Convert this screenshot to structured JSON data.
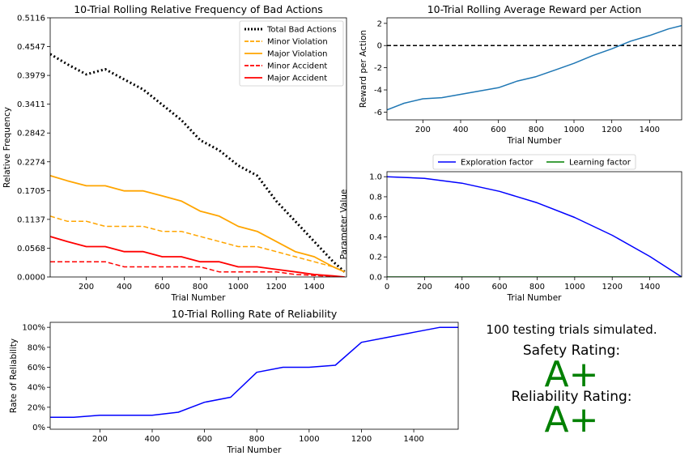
{
  "chart_data": [
    {
      "id": "bad-actions",
      "type": "line",
      "title": "10-Trial Rolling Relative Frequency of Bad Actions",
      "xlabel": "Trial Number",
      "ylabel": "Relative Frequency",
      "xlim": [
        10,
        1570
      ],
      "ylim": [
        0,
        0.5116
      ],
      "xticks": [
        200,
        400,
        600,
        800,
        1000,
        1200,
        1400
      ],
      "yticks": [
        "0.0000",
        "0.0568",
        "0.1137",
        "0.1705",
        "0.2274",
        "0.2842",
        "0.3411",
        "0.3979",
        "0.4547",
        "0.5116"
      ],
      "legend": "top-right",
      "grid": false,
      "series": [
        {
          "name": "Total Bad Actions",
          "color": "#000000",
          "style": "dotted",
          "x": [
            10,
            100,
            200,
            300,
            400,
            500,
            600,
            700,
            800,
            900,
            1000,
            1100,
            1200,
            1300,
            1400,
            1500,
            1560
          ],
          "y": [
            0.44,
            0.42,
            0.4,
            0.41,
            0.39,
            0.37,
            0.34,
            0.31,
            0.27,
            0.25,
            0.22,
            0.2,
            0.15,
            0.11,
            0.07,
            0.03,
            0.01
          ]
        },
        {
          "name": "Minor Violation",
          "color": "#ffa500",
          "style": "dashed",
          "x": [
            10,
            100,
            200,
            300,
            400,
            500,
            600,
            700,
            800,
            900,
            1000,
            1100,
            1200,
            1300,
            1400,
            1500,
            1560
          ],
          "y": [
            0.12,
            0.11,
            0.11,
            0.1,
            0.1,
            0.1,
            0.09,
            0.09,
            0.08,
            0.07,
            0.06,
            0.06,
            0.05,
            0.04,
            0.03,
            0.02,
            0.01
          ]
        },
        {
          "name": "Major Violation",
          "color": "#ffa500",
          "style": "solid",
          "x": [
            10,
            100,
            200,
            300,
            400,
            500,
            600,
            700,
            800,
            900,
            1000,
            1100,
            1200,
            1300,
            1400,
            1500,
            1560
          ],
          "y": [
            0.2,
            0.19,
            0.18,
            0.18,
            0.17,
            0.17,
            0.16,
            0.15,
            0.13,
            0.12,
            0.1,
            0.09,
            0.07,
            0.05,
            0.04,
            0.02,
            0.01
          ]
        },
        {
          "name": "Minor Accident",
          "color": "#ff0000",
          "style": "dashed",
          "x": [
            10,
            100,
            200,
            300,
            400,
            500,
            600,
            700,
            800,
            900,
            1000,
            1100,
            1200,
            1300,
            1400,
            1500,
            1560
          ],
          "y": [
            0.03,
            0.03,
            0.03,
            0.03,
            0.02,
            0.02,
            0.02,
            0.02,
            0.02,
            0.01,
            0.01,
            0.01,
            0.01,
            0.005,
            0.003,
            0.001,
            0.0
          ]
        },
        {
          "name": "Major Accident",
          "color": "#ff0000",
          "style": "solid",
          "x": [
            10,
            100,
            200,
            300,
            400,
            500,
            600,
            700,
            800,
            900,
            1000,
            1100,
            1200,
            1300,
            1400,
            1500,
            1560
          ],
          "y": [
            0.08,
            0.07,
            0.06,
            0.06,
            0.05,
            0.05,
            0.04,
            0.04,
            0.03,
            0.03,
            0.02,
            0.02,
            0.015,
            0.01,
            0.005,
            0.002,
            0.0
          ]
        }
      ]
    },
    {
      "id": "reward",
      "type": "line",
      "title": "10-Trial Rolling Average Reward per Action",
      "xlabel": "Trial Number",
      "ylabel": "Reward per Action",
      "xlim": [
        10,
        1570
      ],
      "ylim": [
        -6.7,
        2.5
      ],
      "xticks": [
        200,
        400,
        600,
        800,
        1000,
        1200,
        1400
      ],
      "yticks": [
        -6,
        -4,
        -2,
        0,
        2
      ],
      "hline": {
        "y": 0,
        "color": "#000000",
        "style": "dashed"
      },
      "grid": false,
      "series": [
        {
          "color": "#1f77b4",
          "x": [
            10,
            100,
            200,
            300,
            400,
            500,
            600,
            700,
            800,
            900,
            1000,
            1100,
            1200,
            1300,
            1400,
            1500,
            1570
          ],
          "y": [
            -5.8,
            -5.2,
            -4.8,
            -4.7,
            -4.4,
            -4.1,
            -3.8,
            -3.2,
            -2.8,
            -2.2,
            -1.6,
            -0.9,
            -0.3,
            0.4,
            0.9,
            1.5,
            1.8
          ]
        }
      ]
    },
    {
      "id": "parameters",
      "type": "line",
      "xlabel": "Trial Number",
      "ylabel": "Parameter Value",
      "xlim": [
        0,
        1570
      ],
      "ylim": [
        0,
        1.05
      ],
      "xticks": [
        0,
        200,
        400,
        600,
        800,
        1000,
        1200,
        1400
      ],
      "yticks": [
        "0.0",
        "0.2",
        "0.4",
        "0.6",
        "0.8",
        "1.0"
      ],
      "legend": "top-center",
      "grid": false,
      "series": [
        {
          "name": "Exploration factor",
          "color": "#0000ff",
          "x": [
            0,
            200,
            400,
            600,
            800,
            1000,
            1200,
            1400,
            1570
          ],
          "y": [
            1.0,
            0.984,
            0.935,
            0.854,
            0.74,
            0.594,
            0.416,
            0.205,
            0.0
          ]
        },
        {
          "name": "Learning factor",
          "color": "#008000",
          "x": [
            0,
            1570
          ],
          "y": [
            0.0,
            0.0
          ]
        }
      ]
    },
    {
      "id": "reliability",
      "type": "line",
      "title": "10-Trial Rolling Rate of Reliability",
      "xlabel": "Trial Number",
      "ylabel": "Rate of Reliability",
      "xlim": [
        10,
        1570
      ],
      "ylim": [
        -0.02,
        1.05
      ],
      "xticks": [
        200,
        400,
        600,
        800,
        1000,
        1200,
        1400
      ],
      "yticks": [
        "0%",
        "20%",
        "40%",
        "60%",
        "80%",
        "100%"
      ],
      "grid": false,
      "series": [
        {
          "color": "#0000ff",
          "x": [
            10,
            100,
            200,
            300,
            400,
            500,
            600,
            700,
            800,
            900,
            1000,
            1100,
            1200,
            1300,
            1400,
            1500,
            1570
          ],
          "y": [
            0.1,
            0.1,
            0.12,
            0.12,
            0.12,
            0.15,
            0.25,
            0.3,
            0.55,
            0.6,
            0.6,
            0.62,
            0.85,
            0.9,
            0.95,
            1.0,
            1.0
          ]
        }
      ]
    }
  ],
  "summary": {
    "trials_text": "100 testing trials simulated.",
    "safety_label": "Safety Rating:",
    "safety_grade": "A+",
    "reliability_label": "Reliability Rating:",
    "reliability_grade": "A+"
  }
}
